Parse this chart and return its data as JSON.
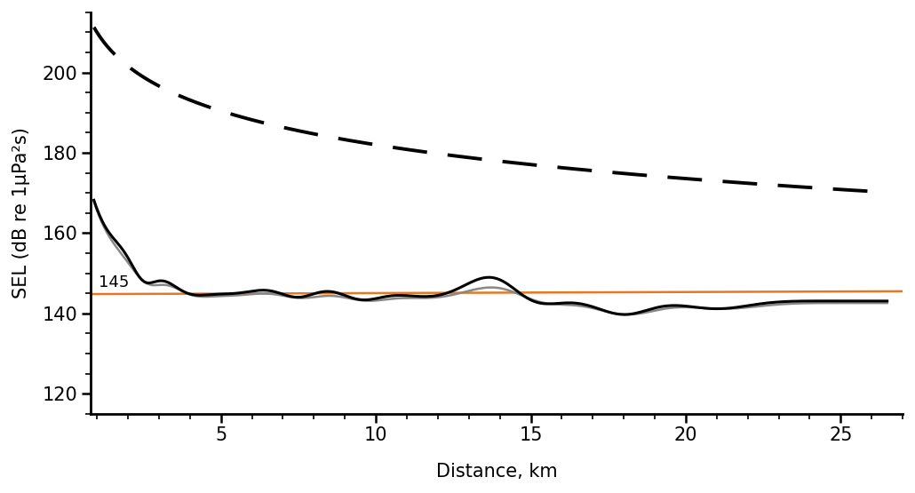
{
  "ylabel": "SEL (dB re 1μPa²s)",
  "xlabel": "Distance, km",
  "ylim": [
    115,
    215
  ],
  "xlim": [
    0.8,
    27
  ],
  "yticks": [
    120,
    140,
    160,
    180,
    200
  ],
  "xticks": [
    5,
    10,
    15,
    20,
    25
  ],
  "orange_line_y": 145,
  "orange_line_label": "145",
  "bg_color": "#ffffff",
  "dashed_line_color": "#000000",
  "solid_line1_color": "#000000",
  "solid_line2_color": "#888888",
  "orange_color": "#E87722"
}
